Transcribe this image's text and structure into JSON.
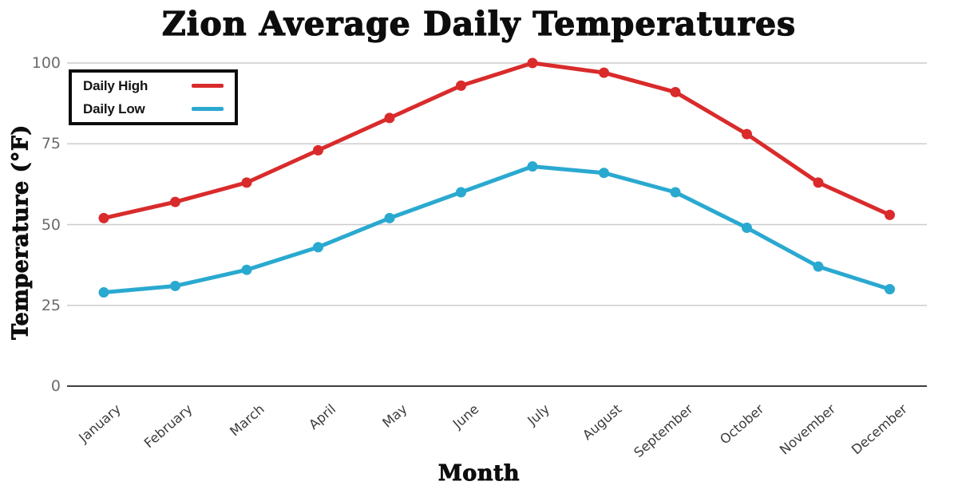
{
  "chart_data": {
    "type": "line",
    "title": "Zion Average Daily Temperatures",
    "xlabel": "Month",
    "ylabel": "Temperature (°F)",
    "categories": [
      "January",
      "February",
      "March",
      "April",
      "May",
      "June",
      "July",
      "August",
      "September",
      "October",
      "November",
      "December"
    ],
    "series": [
      {
        "name": "Daily High",
        "color": "#d92b2b",
        "values": [
          52,
          57,
          63,
          73,
          83,
          93,
          100,
          97,
          91,
          78,
          63,
          53
        ]
      },
      {
        "name": "Daily Low",
        "color": "#2aa9d0",
        "values": [
          29,
          31,
          36,
          43,
          52,
          60,
          68,
          66,
          60,
          49,
          37,
          30
        ]
      }
    ],
    "ylim": [
      0,
      100
    ],
    "yticks": [
      0,
      25,
      50,
      75,
      100
    ],
    "grid": true,
    "legend_position": "top-left",
    "colors": {
      "background": "#ffffff",
      "gridline": "#cccccc",
      "axis_line": "#3f3f3f",
      "tick_text": "#6b6b6b",
      "category_text": "#3c3c3c",
      "title_text": "#0d0d0d"
    }
  }
}
